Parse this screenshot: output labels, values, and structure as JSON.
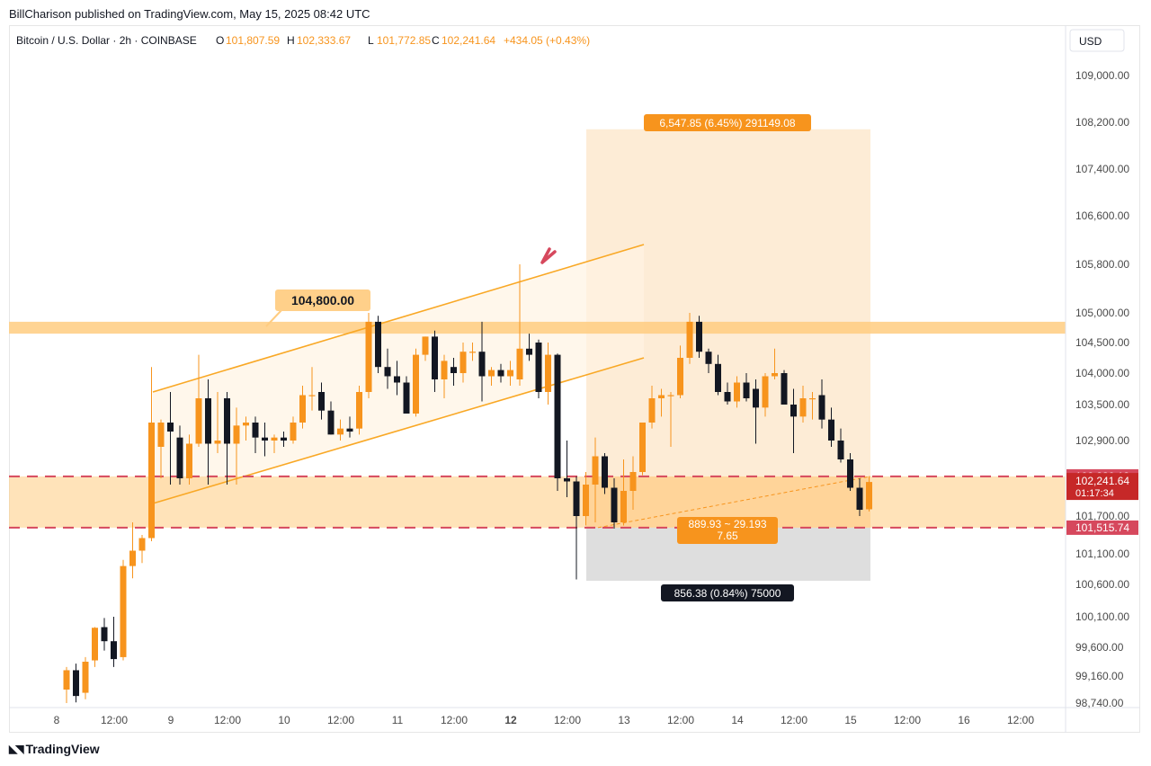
{
  "header": {
    "published": "BillCharison published on TradingView.com, May 15, 2025 08:42 UTC"
  },
  "legend": {
    "symbol": "Bitcoin / U.S. Dollar · 2h · COINBASE",
    "o_label": "O",
    "o_value": "101,807.59",
    "h_label": "H",
    "h_value": "102,333.67",
    "l_label": "L",
    "l_value": "101,772.85",
    "c_label": "C",
    "c_value": "102,241.64",
    "change": "+434.05 (+0.43%)"
  },
  "currency_button": "USD",
  "footer": {
    "brand": "TradingView"
  },
  "colors": {
    "up": "#f7941d",
    "down": "#131722",
    "zone": "#ffcc80",
    "channel": "#f9a825",
    "red_line": "#d6485d",
    "measure_bg": "#fde9cf",
    "loss_bg": "#dcdcdc"
  },
  "chart_data": {
    "type": "candlestick",
    "symbol": "BTCUSD",
    "timeframe": "2h",
    "ylim": [
      98740,
      109400
    ],
    "y_ticks": [
      "109,000.00",
      "108,200.00",
      "107,400.00",
      "106,600.00",
      "105,800.00",
      "105,000.00",
      "104,500.00",
      "104,000.00",
      "103,500.00",
      "102,900.00",
      "101,700.00",
      "101,100.00",
      "100,600.00",
      "100,100.00",
      "99,600.00",
      "99,160.00",
      "98,740.00"
    ],
    "x_ticks": [
      "8",
      "12:00",
      "9",
      "12:00",
      "10",
      "12:00",
      "11",
      "12:00",
      "12",
      "12:00",
      "13",
      "12:00",
      "14",
      "12:00",
      "15",
      "12:00",
      "16",
      "12:00"
    ],
    "price_labels": [
      {
        "text": "102,330.13",
        "price": 102330,
        "color": "#d6485d"
      },
      {
        "text": "102,241.64",
        "sub": "01:17:34",
        "price": 102241.64,
        "color": "#c62828"
      },
      {
        "text": "101,515.74",
        "price": 101515.74,
        "color": "#d6485d"
      }
    ],
    "annotations": {
      "resistance_label": "104,800.00",
      "target_label": "6,547.85 (6.45%) 291149.08",
      "ratio_label_line1": "889.93 ~ 29.193",
      "ratio_label_line2": "7.65",
      "stop_label": "856.38 (0.84%) 75000"
    },
    "levels": {
      "resistance_zone": [
        104650,
        104850
      ],
      "support_zone": [
        101515.74,
        102330.13
      ]
    },
    "candles": [
      {
        "o": 98950,
        "h": 99300,
        "l": 98740,
        "c": 99250
      },
      {
        "o": 99250,
        "h": 99350,
        "l": 98750,
        "c": 98850
      },
      {
        "o": 98900,
        "h": 99450,
        "l": 98800,
        "c": 99380
      },
      {
        "o": 99400,
        "h": 99930,
        "l": 99300,
        "c": 99920
      },
      {
        "o": 99930,
        "h": 100080,
        "l": 99550,
        "c": 99700
      },
      {
        "o": 99700,
        "h": 100100,
        "l": 99300,
        "c": 99420
      },
      {
        "o": 99450,
        "h": 101000,
        "l": 99400,
        "c": 100900
      },
      {
        "o": 100900,
        "h": 101600,
        "l": 100700,
        "c": 101150
      },
      {
        "o": 101150,
        "h": 101400,
        "l": 100950,
        "c": 101350
      },
      {
        "o": 101350,
        "h": 104100,
        "l": 101300,
        "c": 103200
      },
      {
        "o": 102800,
        "h": 103250,
        "l": 102300,
        "c": 103200
      },
      {
        "o": 103200,
        "h": 103700,
        "l": 102200,
        "c": 103050
      },
      {
        "o": 102950,
        "h": 103150,
        "l": 102200,
        "c": 102300
      },
      {
        "o": 102300,
        "h": 103000,
        "l": 102200,
        "c": 102850
      },
      {
        "o": 102850,
        "h": 104300,
        "l": 102800,
        "c": 103600
      },
      {
        "o": 103600,
        "h": 103900,
        "l": 102200,
        "c": 102850
      },
      {
        "o": 102850,
        "h": 103700,
        "l": 102700,
        "c": 102900
      },
      {
        "o": 103600,
        "h": 103700,
        "l": 102200,
        "c": 102850
      },
      {
        "o": 102850,
        "h": 103450,
        "l": 102200,
        "c": 103150
      },
      {
        "o": 103150,
        "h": 103300,
        "l": 102900,
        "c": 103200
      },
      {
        "o": 103200,
        "h": 103300,
        "l": 102700,
        "c": 102950
      },
      {
        "o": 102950,
        "h": 103200,
        "l": 102650,
        "c": 102900
      },
      {
        "o": 102900,
        "h": 103000,
        "l": 102700,
        "c": 102950
      },
      {
        "o": 102950,
        "h": 103050,
        "l": 102800,
        "c": 102900
      },
      {
        "o": 102900,
        "h": 103300,
        "l": 102850,
        "c": 103200
      },
      {
        "o": 103200,
        "h": 103800,
        "l": 103100,
        "c": 103650
      },
      {
        "o": 103650,
        "h": 104100,
        "l": 103400,
        "c": 103650
      },
      {
        "o": 103700,
        "h": 103850,
        "l": 103250,
        "c": 103400
      },
      {
        "o": 103400,
        "h": 103550,
        "l": 103000,
        "c": 103000
      },
      {
        "o": 103000,
        "h": 103250,
        "l": 102900,
        "c": 103100
      },
      {
        "o": 103100,
        "h": 103300,
        "l": 102950,
        "c": 103050
      },
      {
        "o": 103100,
        "h": 103800,
        "l": 103000,
        "c": 103700
      },
      {
        "o": 103700,
        "h": 105000,
        "l": 103600,
        "c": 104850
      },
      {
        "o": 104850,
        "h": 104950,
        "l": 104000,
        "c": 104100
      },
      {
        "o": 104100,
        "h": 104400,
        "l": 103750,
        "c": 103950
      },
      {
        "o": 103950,
        "h": 104200,
        "l": 103650,
        "c": 103850
      },
      {
        "o": 103850,
        "h": 103950,
        "l": 103350,
        "c": 103350
      },
      {
        "o": 103350,
        "h": 104400,
        "l": 103300,
        "c": 104300
      },
      {
        "o": 104300,
        "h": 104600,
        "l": 104200,
        "c": 104600
      },
      {
        "o": 104600,
        "h": 104700,
        "l": 103700,
        "c": 103900
      },
      {
        "o": 103900,
        "h": 104300,
        "l": 103600,
        "c": 104200
      },
      {
        "o": 104100,
        "h": 104250,
        "l": 103800,
        "c": 104000
      },
      {
        "o": 104000,
        "h": 104500,
        "l": 103850,
        "c": 104350
      },
      {
        "o": 104350,
        "h": 104500,
        "l": 104200,
        "c": 104350
      },
      {
        "o": 104350,
        "h": 104850,
        "l": 103550,
        "c": 103950
      },
      {
        "o": 103950,
        "h": 104100,
        "l": 103800,
        "c": 104050
      },
      {
        "o": 104050,
        "h": 104150,
        "l": 103850,
        "c": 103950
      },
      {
        "o": 103950,
        "h": 104200,
        "l": 103800,
        "c": 104050
      },
      {
        "o": 103900,
        "h": 105800,
        "l": 103800,
        "c": 104400
      },
      {
        "o": 104400,
        "h": 104650,
        "l": 104200,
        "c": 104300
      },
      {
        "o": 104500,
        "h": 104550,
        "l": 103600,
        "c": 103700
      },
      {
        "o": 103700,
        "h": 104500,
        "l": 103500,
        "c": 104300
      },
      {
        "o": 104300,
        "h": 104320,
        "l": 102100,
        "c": 102300
      },
      {
        "o": 102300,
        "h": 102900,
        "l": 102000,
        "c": 102250
      },
      {
        "o": 102250,
        "h": 102330,
        "l": 100680,
        "c": 101700
      },
      {
        "o": 101700,
        "h": 102400,
        "l": 101550,
        "c": 102200
      },
      {
        "o": 102200,
        "h": 102950,
        "l": 101600,
        "c": 102650
      },
      {
        "o": 102650,
        "h": 102700,
        "l": 102050,
        "c": 102150
      },
      {
        "o": 102150,
        "h": 102300,
        "l": 101500,
        "c": 101600
      },
      {
        "o": 101600,
        "h": 102600,
        "l": 101550,
        "c": 102100
      },
      {
        "o": 102100,
        "h": 102650,
        "l": 101800,
        "c": 102400
      },
      {
        "o": 102400,
        "h": 103200,
        "l": 102350,
        "c": 103200
      },
      {
        "o": 103200,
        "h": 103800,
        "l": 103100,
        "c": 103600
      },
      {
        "o": 103600,
        "h": 103750,
        "l": 103300,
        "c": 103650
      },
      {
        "o": 103650,
        "h": 103700,
        "l": 102800,
        "c": 103650
      },
      {
        "o": 103650,
        "h": 104450,
        "l": 103600,
        "c": 104250
      },
      {
        "o": 104250,
        "h": 105000,
        "l": 104150,
        "c": 104850
      },
      {
        "o": 104850,
        "h": 104950,
        "l": 104250,
        "c": 104350
      },
      {
        "o": 104350,
        "h": 104400,
        "l": 104000,
        "c": 104150
      },
      {
        "o": 104150,
        "h": 104300,
        "l": 103650,
        "c": 103700
      },
      {
        "o": 103700,
        "h": 103850,
        "l": 103500,
        "c": 103550
      },
      {
        "o": 103550,
        "h": 103950,
        "l": 103450,
        "c": 103850
      },
      {
        "o": 103850,
        "h": 104000,
        "l": 103550,
        "c": 103600
      },
      {
        "o": 103750,
        "h": 103900,
        "l": 102850,
        "c": 103450
      },
      {
        "o": 103450,
        "h": 104000,
        "l": 103300,
        "c": 103950
      },
      {
        "o": 103950,
        "h": 104400,
        "l": 103900,
        "c": 104000
      },
      {
        "o": 104000,
        "h": 104050,
        "l": 103500,
        "c": 103500
      },
      {
        "o": 103500,
        "h": 103750,
        "l": 102700,
        "c": 103300
      },
      {
        "o": 103300,
        "h": 103800,
        "l": 103200,
        "c": 103600
      },
      {
        "o": 103600,
        "h": 103700,
        "l": 103250,
        "c": 103600
      },
      {
        "o": 103650,
        "h": 103900,
        "l": 103100,
        "c": 103250
      },
      {
        "o": 103250,
        "h": 103450,
        "l": 102800,
        "c": 102900
      },
      {
        "o": 102900,
        "h": 103100,
        "l": 102550,
        "c": 102600
      },
      {
        "o": 102600,
        "h": 102700,
        "l": 102100,
        "c": 102150
      },
      {
        "o": 102150,
        "h": 102300,
        "l": 101700,
        "c": 101800
      },
      {
        "o": 101807.59,
        "h": 102333.67,
        "l": 101772.85,
        "c": 102241.64
      }
    ]
  }
}
